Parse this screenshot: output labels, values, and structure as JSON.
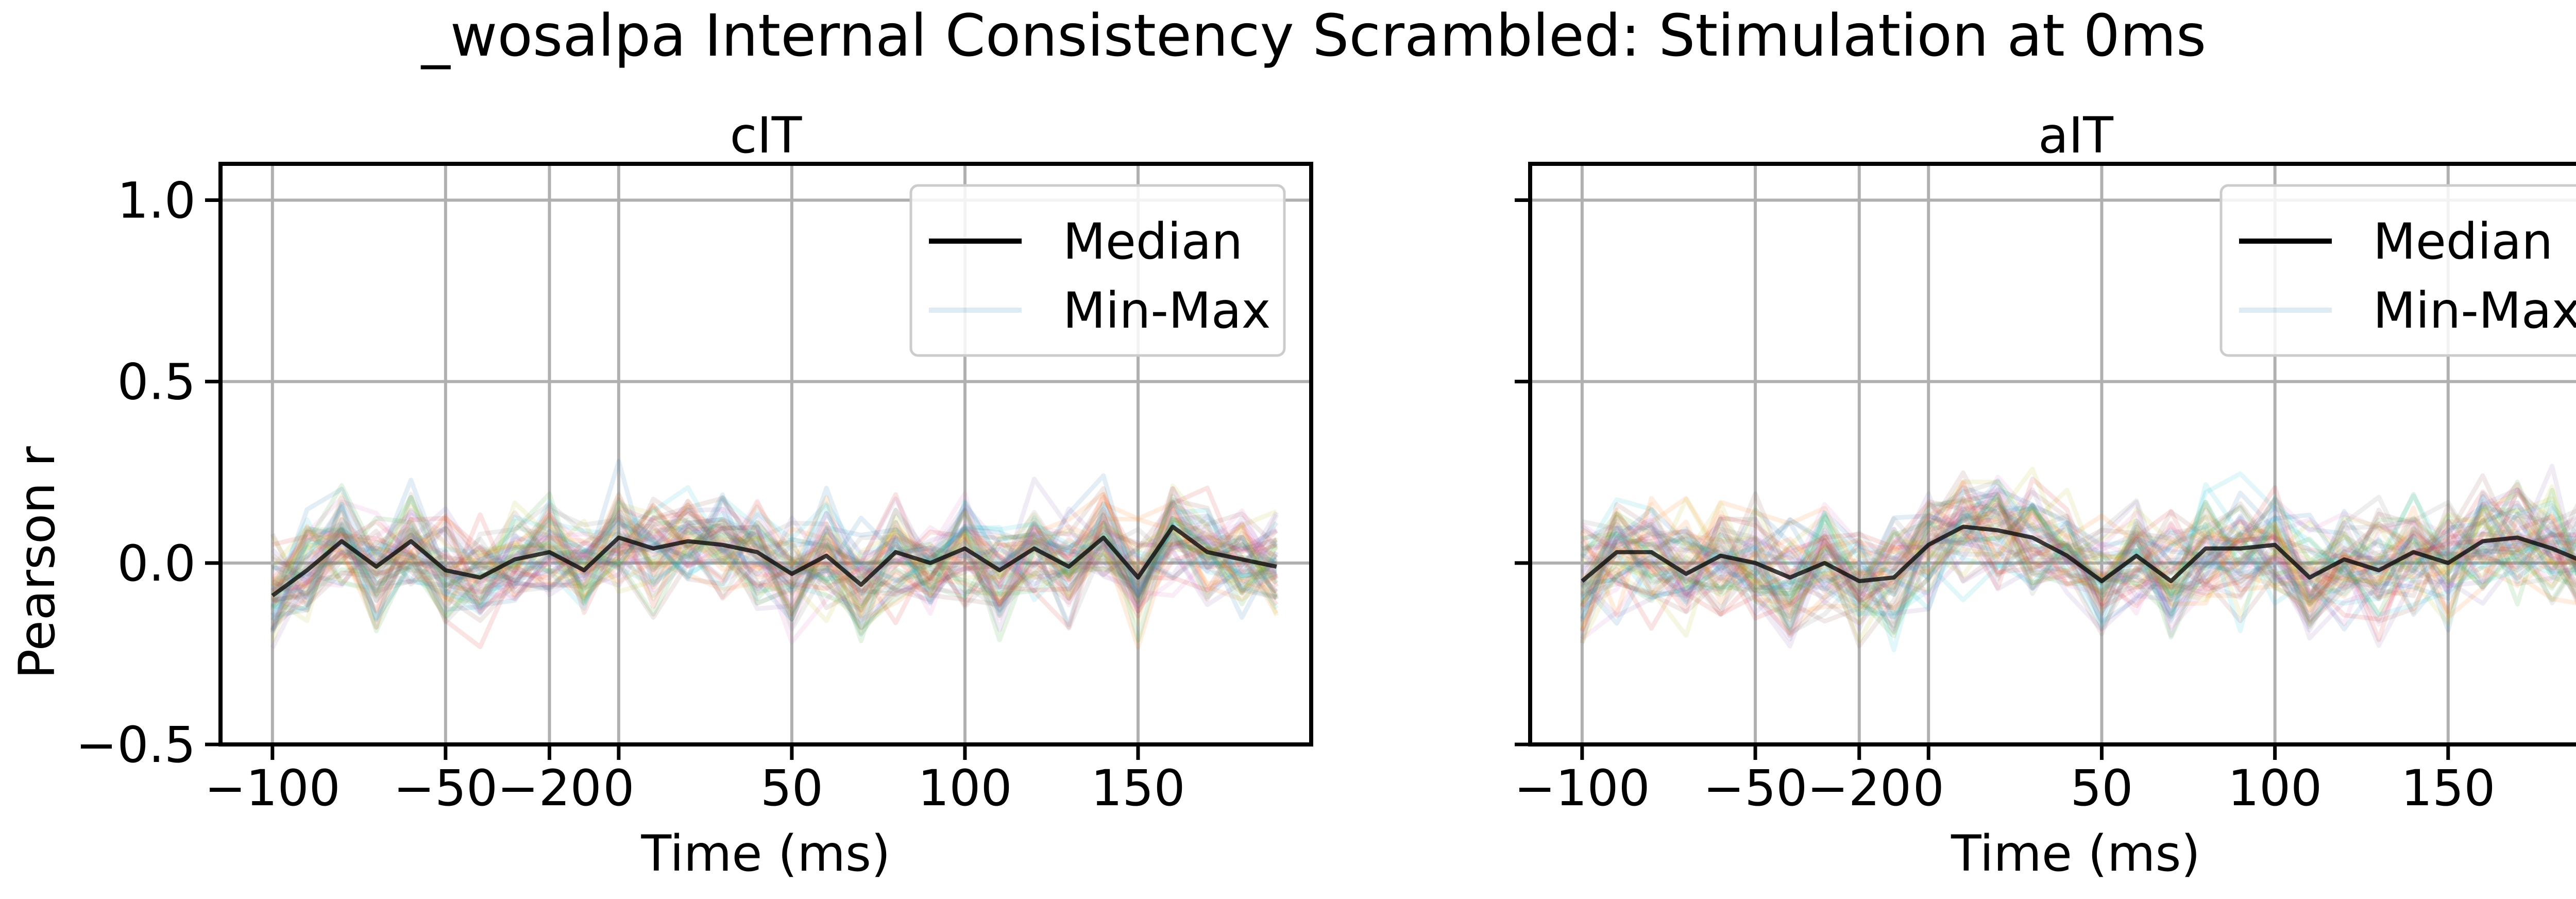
{
  "figure": {
    "title": "_wosalpa Internal Consistency Scrambled: Stimulation at 0ms"
  },
  "legend": {
    "median_label": "Median",
    "minmax_label": "Min-Max"
  },
  "colors": {
    "median": "#000000",
    "grid": "#b0b0b0",
    "trace_palette": [
      "#1f77b4",
      "#ff7f0e",
      "#2ca02c",
      "#d62728",
      "#9467bd",
      "#8c564b",
      "#e377c2",
      "#7f7f7f",
      "#bcbd22",
      "#17becf"
    ]
  },
  "chart_data": [
    {
      "type": "line",
      "title": "cIT",
      "xlabel": "Time (ms)",
      "ylabel": "Pearson r",
      "xlim": [
        -115,
        200
      ],
      "ylim": [
        -0.5,
        1.1
      ],
      "xticks": [
        -100,
        -50,
        -20,
        0,
        50,
        100,
        150
      ],
      "xtick_labels": [
        "−100",
        "−50",
        "−20",
        "0",
        "50",
        "100",
        "150"
      ],
      "yticks": [
        -0.5,
        0.0,
        0.5,
        1.0
      ],
      "ytick_labels": [
        "−0.5",
        "0.0",
        "0.5",
        "1.0"
      ],
      "grid": true,
      "legend_position": "upper right",
      "trace_count": 60,
      "trace_spread": 0.09,
      "x": [
        -100,
        -90,
        -80,
        -70,
        -60,
        -50,
        -40,
        -30,
        -20,
        -10,
        0,
        10,
        20,
        30,
        40,
        50,
        60,
        70,
        80,
        90,
        100,
        110,
        120,
        130,
        140,
        150,
        160,
        170,
        180,
        190
      ],
      "series": [
        {
          "name": "Median",
          "values": [
            -0.09,
            -0.02,
            0.06,
            -0.01,
            0.06,
            -0.02,
            -0.04,
            0.01,
            0.03,
            -0.02,
            0.07,
            0.04,
            0.06,
            0.05,
            0.03,
            -0.03,
            0.02,
            -0.06,
            0.03,
            0.0,
            0.04,
            -0.02,
            0.04,
            -0.01,
            0.07,
            -0.04,
            0.1,
            0.03,
            0.01,
            -0.01
          ]
        }
      ]
    },
    {
      "type": "line",
      "title": "aIT",
      "xlabel": "Time (ms)",
      "ylabel": "",
      "xlim": [
        -115,
        200
      ],
      "ylim": [
        -0.5,
        1.1
      ],
      "xticks": [
        -100,
        -50,
        -20,
        0,
        50,
        100,
        150
      ],
      "xtick_labels": [
        "−100",
        "−50",
        "−20",
        "0",
        "50",
        "100",
        "150"
      ],
      "yticks": [
        -0.5,
        0.0,
        0.5,
        1.0
      ],
      "ytick_labels": [
        "",
        "",
        "",
        ""
      ],
      "grid": true,
      "legend_position": "upper right",
      "trace_count": 60,
      "trace_spread": 0.1,
      "x": [
        -100,
        -90,
        -80,
        -70,
        -60,
        -50,
        -40,
        -30,
        -20,
        -10,
        0,
        10,
        20,
        30,
        40,
        50,
        60,
        70,
        80,
        90,
        100,
        110,
        120,
        130,
        140,
        150,
        160,
        170,
        180,
        190
      ],
      "series": [
        {
          "name": "Median",
          "values": [
            -0.05,
            0.03,
            0.03,
            -0.03,
            0.02,
            0.0,
            -0.04,
            0.0,
            -0.05,
            -0.04,
            0.05,
            0.1,
            0.09,
            0.07,
            0.02,
            -0.05,
            0.02,
            -0.05,
            0.04,
            0.04,
            0.05,
            -0.04,
            0.01,
            -0.02,
            0.03,
            0.0,
            0.06,
            0.07,
            0.04,
            0.0
          ]
        }
      ]
    }
  ]
}
